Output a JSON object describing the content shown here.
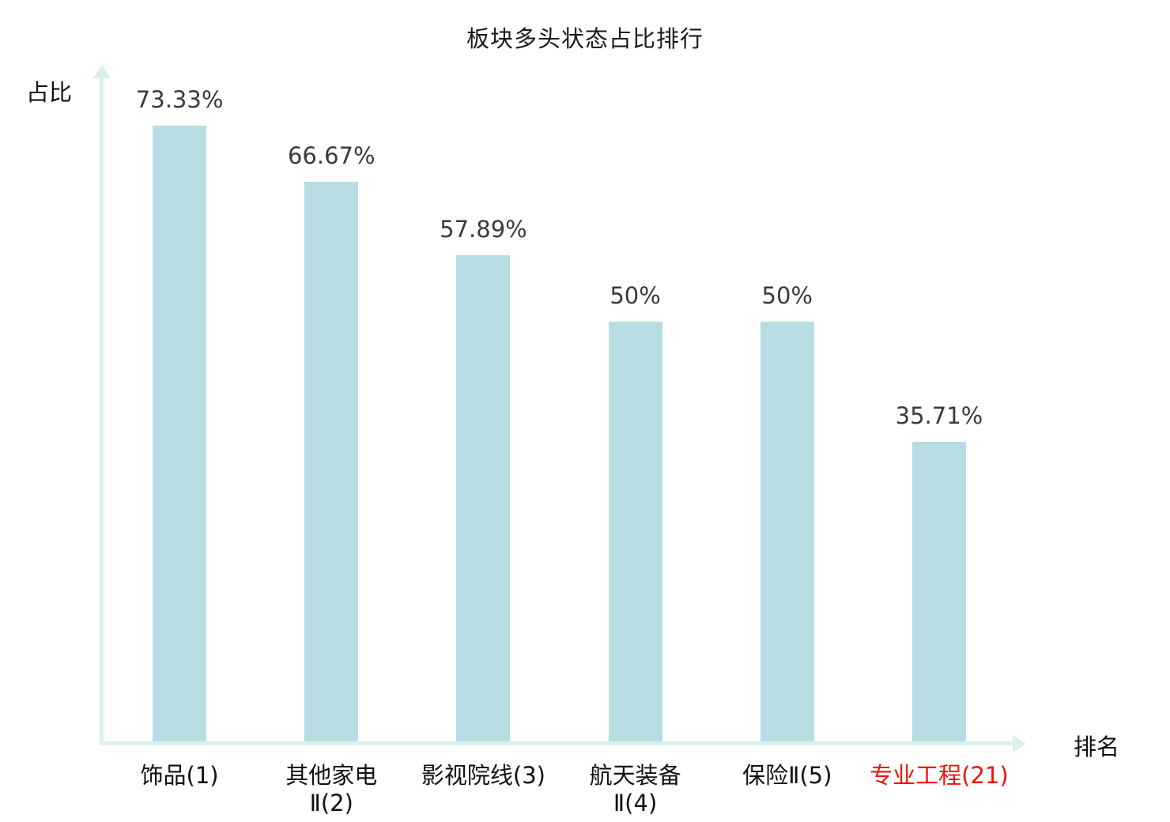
{
  "chart_data": {
    "type": "bar",
    "title": "板块多头状态占比排行",
    "xlabel": "排名",
    "ylabel": "占比",
    "categories": [
      "饰品(1)",
      "其他家电\nⅡ(2)",
      "影视院线(3)",
      "航天装备\nⅡ(4)",
      "保险Ⅱ(5)",
      "专业工程(21)"
    ],
    "values": [
      73.33,
      66.67,
      57.89,
      50,
      50,
      35.71
    ],
    "value_labels": [
      "73.33%",
      "66.67%",
      "57.89%",
      "50%",
      "50%",
      "35.71%"
    ],
    "ylim": [
      0,
      80
    ],
    "grid": false,
    "legend": "none",
    "bar_color": "#b7dde2",
    "axis_color": "#d9f1ea",
    "label_color": "#3a3a3a",
    "highlight_index": 5,
    "highlight_color": "#ee1309"
  }
}
